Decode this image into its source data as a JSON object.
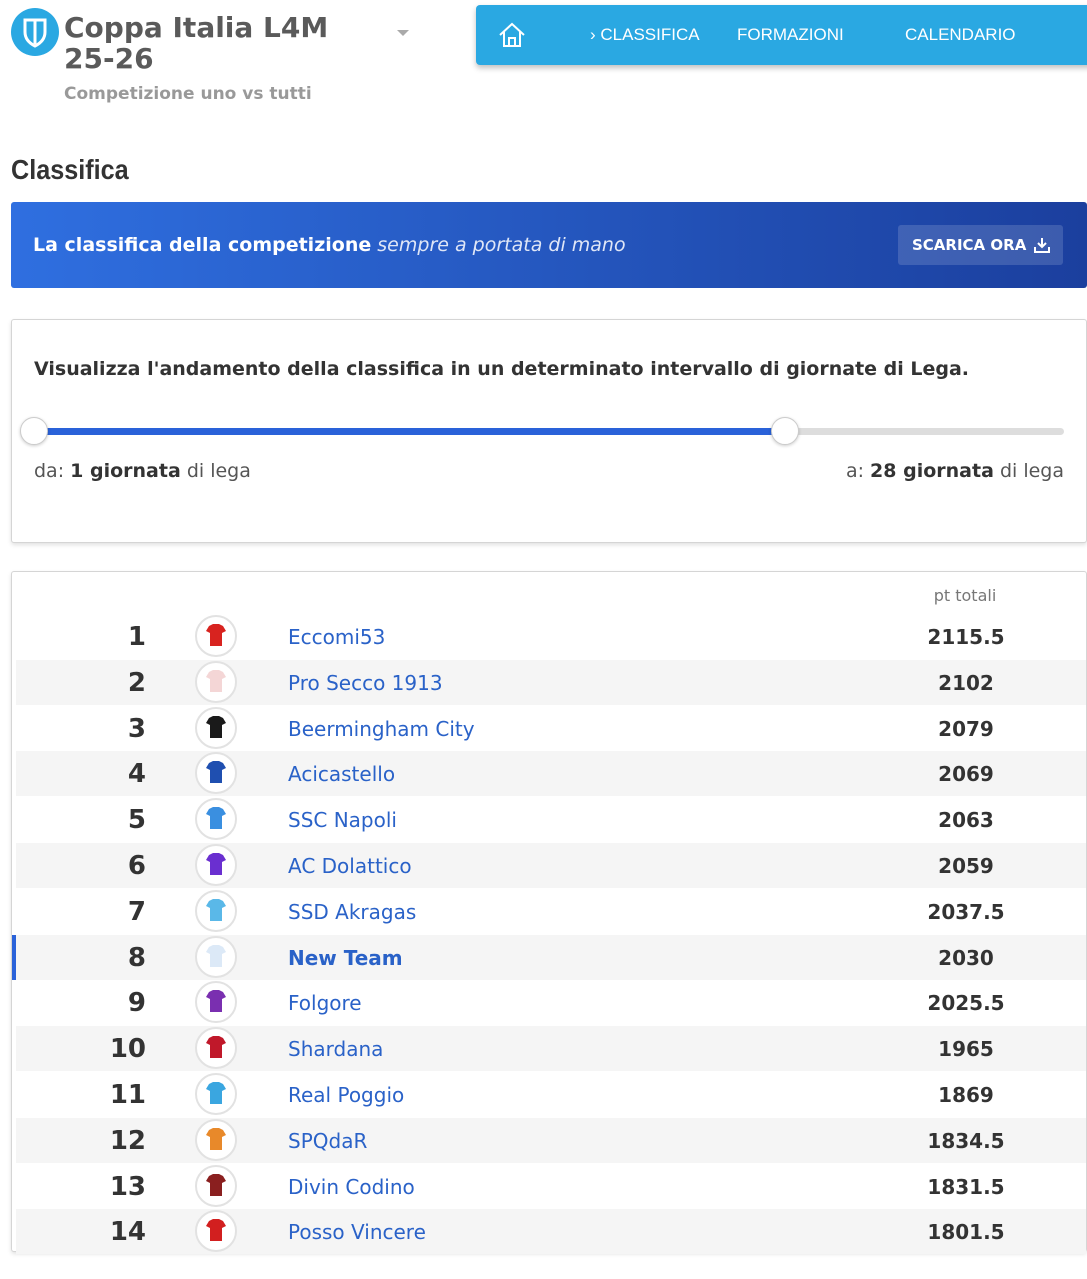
{
  "header": {
    "title": "Coppa Italia L4M",
    "season": "25-26",
    "subtitle": "Competizione uno vs tutti"
  },
  "nav": {
    "items": [
      "CLASSIFICA",
      "FORMAZIONI",
      "CALENDARIO"
    ]
  },
  "page_title": "Classifica",
  "banner": {
    "text_bold": "La classifica della competizione",
    "text_italic": "sempre a portata di mano",
    "button": "SCARICA ORA"
  },
  "range": {
    "description": "Visualizza l'andamento della classifica in un determinato intervallo di giornate di Lega.",
    "from_prefix": "da:",
    "from_value": "1 giornata",
    "from_suffix": "di lega",
    "to_prefix": "a:",
    "to_value": "28 giornata",
    "to_suffix": "di lega"
  },
  "table": {
    "header": "pt totali",
    "rows": [
      [
        1,
        "Eccomi53",
        "2115.5"
      ],
      [
        2,
        "Pro Secco 1913",
        "2102"
      ],
      [
        3,
        "Beermingham City",
        "2079"
      ],
      [
        4,
        "Acicastello",
        "2069"
      ],
      [
        5,
        "SSC Napoli",
        "2063"
      ],
      [
        6,
        "AC Dolattico",
        "2059"
      ],
      [
        7,
        "SSD Akragas",
        "2037.5"
      ],
      [
        8,
        "New Team",
        "2030"
      ],
      [
        9,
        "Folgore",
        "2025.5"
      ],
      [
        10,
        "Shardana",
        "1965"
      ],
      [
        11,
        "Real Poggio",
        "1869"
      ],
      [
        12,
        "SPQdaR",
        "1834.5"
      ],
      [
        13,
        "Divin Codino",
        "1831.5"
      ],
      [
        14,
        "Posso Vincere",
        "1801.5"
      ]
    ]
  }
}
